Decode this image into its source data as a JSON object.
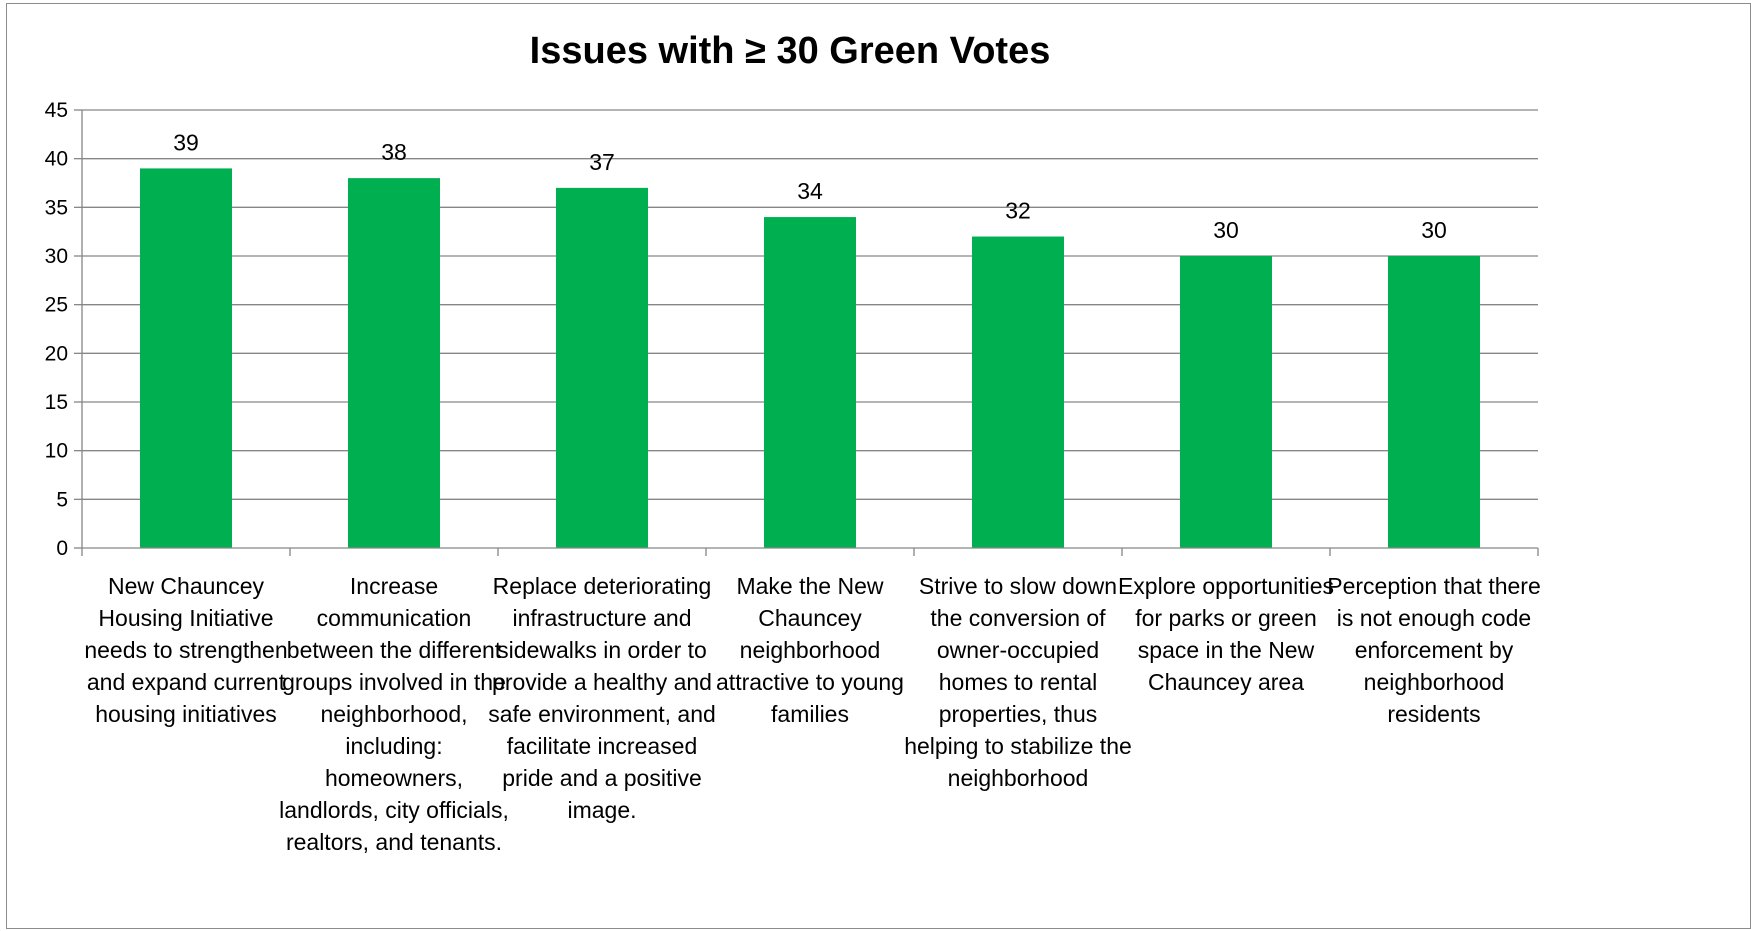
{
  "chart_data": {
    "type": "bar",
    "title": "Issues with ≥ 30 Green Votes",
    "xlabel": "",
    "ylabel": "",
    "ylim": [
      0,
      45
    ],
    "yticks": [
      0,
      5,
      10,
      15,
      20,
      25,
      30,
      35,
      40,
      45
    ],
    "grid": true,
    "legend": "none",
    "bar_color": "#00b050",
    "categories": [
      "New Chauncey Housing Initiative needs to strengthen and expand current housing initiatives",
      "Increase communication between the different groups involved in the neighborhood, including: homeowners, landlords, city officials, realtors, and tenants.",
      "Replace deteriorating infrastructure and sidewalks in order to provide a healthy and safe environment, and facilitate increased pride and a positive image.",
      "Make the New Chauncey neighborhood attractive to young families",
      "Strive to slow down the conversion of owner-occupied homes to rental properties, thus helping to stabilize the neighborhood",
      "Explore opportunities for parks or green space in the New Chauncey area",
      "Perception that there is not enough code enforcement by neighborhood residents"
    ],
    "values": [
      39,
      38,
      37,
      34,
      32,
      30,
      30
    ],
    "data_labels": [
      "39",
      "38",
      "37",
      "34",
      "32",
      "30",
      "30"
    ]
  }
}
